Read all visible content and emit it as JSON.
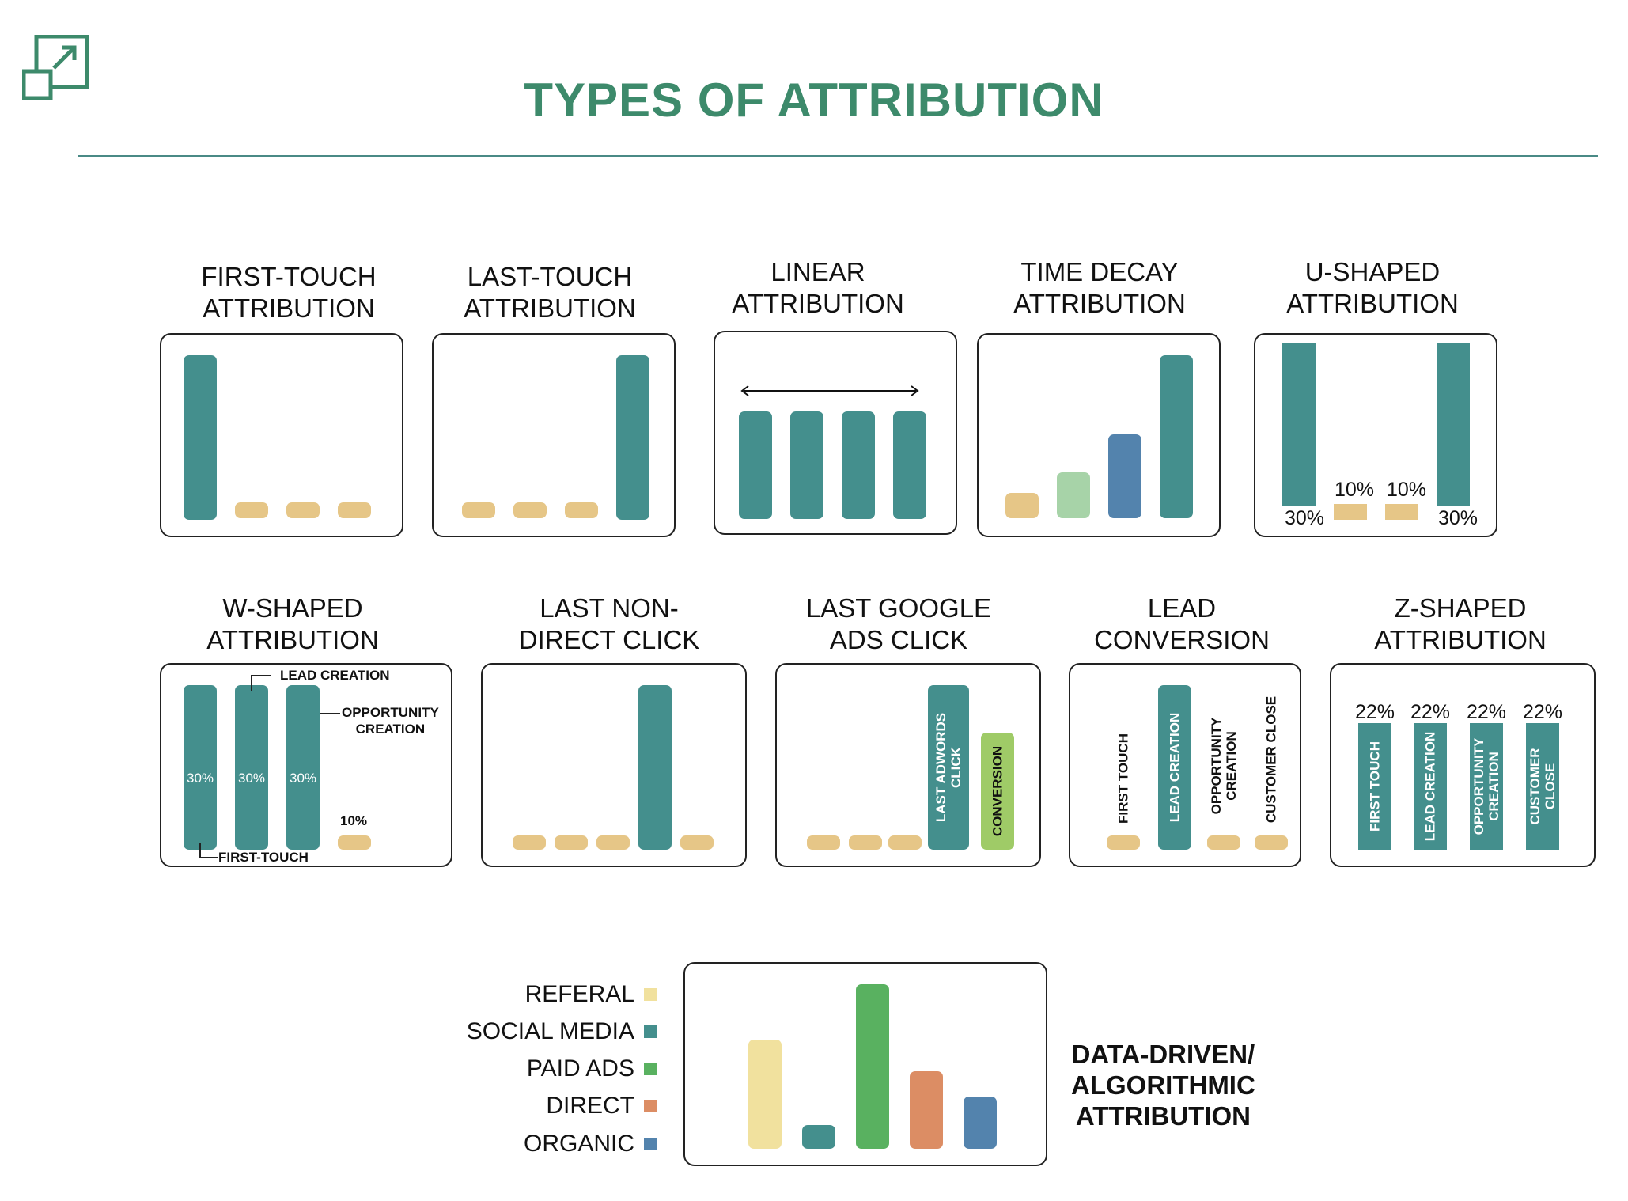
{
  "page": {
    "title": "TYPES OF ATTRIBUTION"
  },
  "logo": {
    "icon": "expand-arrow-icon",
    "color": "#3d8a6b"
  },
  "colors": {
    "teal": "#448f8d",
    "tan": "#e6c687",
    "pale_green": "#a7d3a8",
    "steel_blue": "#5383ad",
    "lime_green": "#9fcb67",
    "title_green": "#3d8a6b"
  },
  "panels": {
    "first_touch": {
      "title_line1": "FIRST-TOUCH",
      "title_line2": "ATTRIBUTION"
    },
    "last_touch": {
      "title_line1": "LAST-TOUCH",
      "title_line2": "ATTRIBUTION"
    },
    "linear": {
      "title_line1": "LINEAR",
      "title_line2": "ATTRIBUTION"
    },
    "time_decay": {
      "title_line1": "TIME DECAY",
      "title_line2": "ATTRIBUTION"
    },
    "u_shaped": {
      "title_line1": "U-SHAPED",
      "title_line2": "ATTRIBUTION",
      "labels": [
        "30%",
        "10%",
        "10%",
        "30%"
      ]
    },
    "w_shaped": {
      "title_line1": "W-SHAPED",
      "title_line2": "ATTRIBUTION",
      "bar_labels": [
        "30%",
        "30%",
        "30%"
      ],
      "small_label": "10%",
      "callout_lead": "LEAD CREATION",
      "callout_opp_line1": "OPPORTUNITY",
      "callout_opp_line2": "CREATION",
      "callout_first": "FIRST-TOUCH"
    },
    "last_non_direct": {
      "title_line1": "LAST NON-",
      "title_line2": "DIRECT CLICK"
    },
    "last_google_ads": {
      "title_line1": "LAST GOOGLE",
      "title_line2": "ADS CLICK",
      "bar1_line1": "LAST ADWORDS",
      "bar1_line2": "CLICK",
      "bar2": "CONVERSION"
    },
    "lead_conversion": {
      "title_line1": "LEAD",
      "title_line2": "CONVERSION",
      "first_touch": "FIRST TOUCH",
      "lead_creation": "LEAD CREATION",
      "opp_line1": "OPPORTUNITY",
      "opp_line2": "CREATION",
      "customer_close": "CUSTOMER CLOSE"
    },
    "z_shaped": {
      "title_line1": "Z-SHAPED",
      "title_line2": "ATTRIBUTION",
      "percents": [
        "22%",
        "22%",
        "22%",
        "22%"
      ],
      "bar1": "FIRST TOUCH",
      "bar2": "LEAD CREATION",
      "bar3_line1": "OPPORTUNITY",
      "bar3_line2": "CREATION",
      "bar4_line1": "CUSTOMER",
      "bar4_line2": "CLOSE"
    },
    "data_driven": {
      "title_line1": "DATA-DRIVEN/",
      "title_line2": "ALGORITHMIC",
      "title_line3": "ATTRIBUTION",
      "legend": [
        {
          "label": "REFERAL",
          "color": "#f1e19e"
        },
        {
          "label": "SOCIAL MEDIA",
          "color": "#448f8d"
        },
        {
          "label": "PAID ADS",
          "color": "#59b160"
        },
        {
          "label": "DIRECT",
          "color": "#dc8d64"
        },
        {
          "label": "ORGANIC",
          "color": "#5383ad"
        }
      ]
    }
  }
}
